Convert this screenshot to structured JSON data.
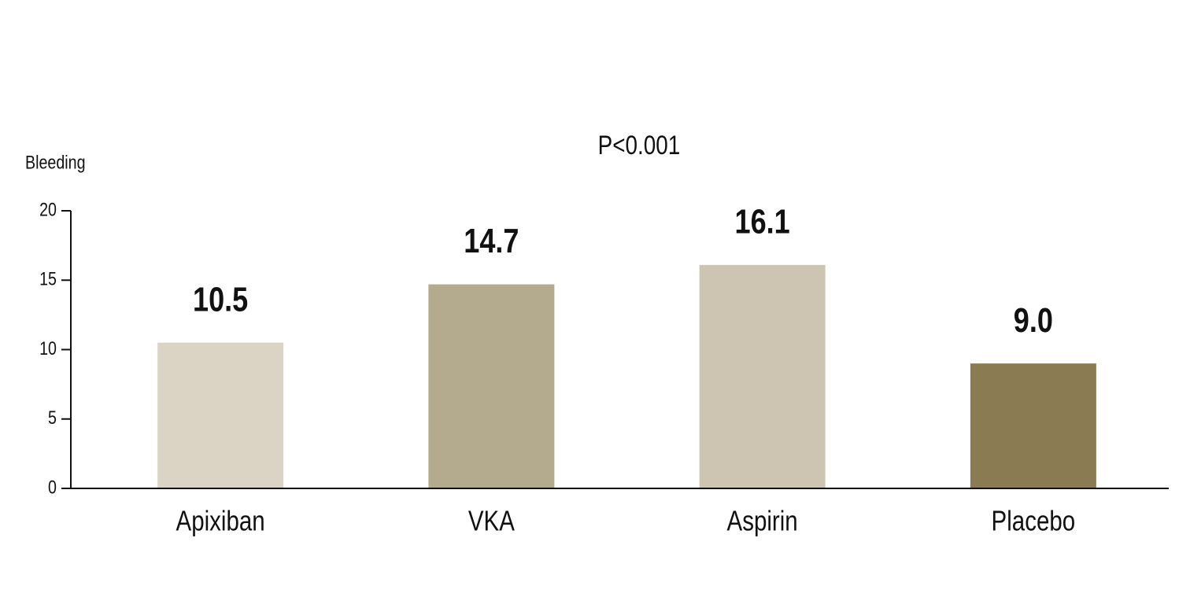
{
  "chart_data": {
    "type": "bar",
    "annotation": "P<0.001",
    "y_label": "Bleeding",
    "categories": [
      "Apixiban",
      "VKA",
      "Aspirin",
      "Placebo"
    ],
    "values": [
      10.5,
      14.7,
      16.1,
      9.0
    ],
    "value_labels": [
      "10.5",
      "14.7",
      "16.1",
      "9.0"
    ],
    "colors": [
      "#dbd4c4",
      "#b4aa8d",
      "#cdc4b1",
      "#8a7b53"
    ],
    "ylim": [
      0,
      20
    ],
    "yticks": [
      0,
      5,
      10,
      15,
      20
    ],
    "grid": false
  }
}
